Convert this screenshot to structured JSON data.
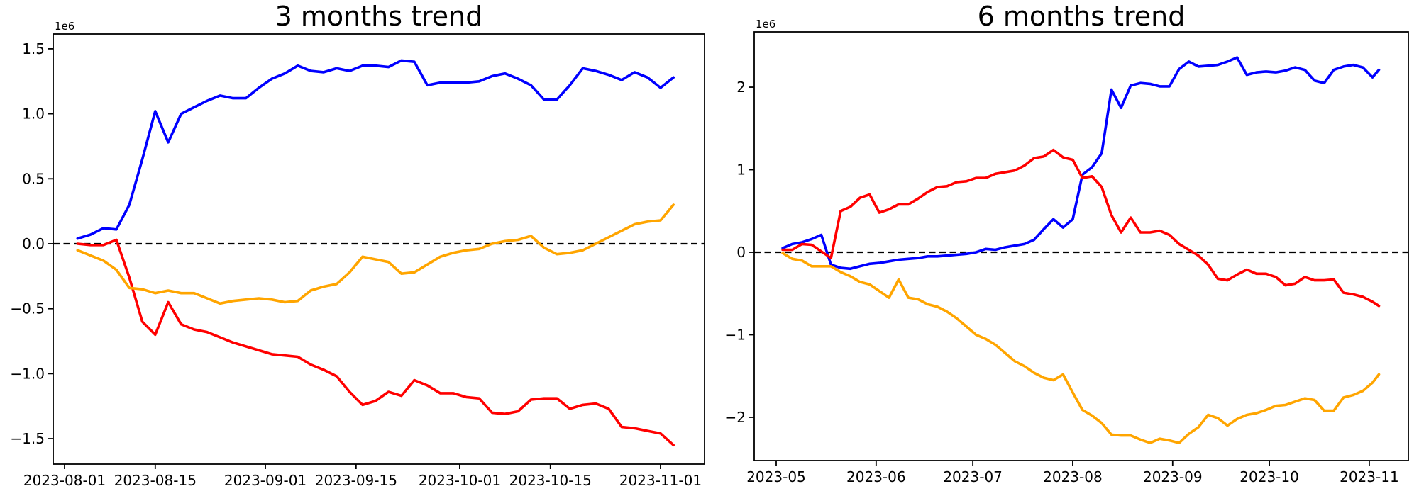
{
  "figure": {
    "background": "#ffffff",
    "axis_color": "#000000",
    "zero_line_style": "dashed"
  },
  "chart_data": [
    {
      "type": "line",
      "title": "3 months trend",
      "offset_label": "1e6",
      "xlabel": "",
      "ylabel": "",
      "grid": false,
      "legend": "none",
      "zero_line": true,
      "ylim": [
        -1.696,
        1.614
      ],
      "y_ticks": [
        {
          "value": 1.5,
          "label": "1.5"
        },
        {
          "value": 1.0,
          "label": "1.0"
        },
        {
          "value": 0.5,
          "label": "0.5"
        },
        {
          "value": 0.0,
          "label": "0.0"
        },
        {
          "value": -0.5,
          "label": "−0.5"
        },
        {
          "value": -1.0,
          "label": "−1.0"
        },
        {
          "value": -1.5,
          "label": "−1.5"
        }
      ],
      "x_ticks": [
        {
          "date": "2023-08-01",
          "label": "2023-08-01"
        },
        {
          "date": "2023-08-15",
          "label": "2023-08-15"
        },
        {
          "date": "2023-09-01",
          "label": "2023-09-01"
        },
        {
          "date": "2023-09-15",
          "label": "2023-09-15"
        },
        {
          "date": "2023-10-01",
          "label": "2023-10-01"
        },
        {
          "date": "2023-10-15",
          "label": "2023-10-15"
        },
        {
          "date": "2023-11-01",
          "label": "2023-11-01"
        }
      ],
      "dates": [
        "2023-08-03",
        "2023-08-05",
        "2023-08-07",
        "2023-08-09",
        "2023-08-11",
        "2023-08-13",
        "2023-08-15",
        "2023-08-17",
        "2023-08-19",
        "2023-08-21",
        "2023-08-23",
        "2023-08-25",
        "2023-08-27",
        "2023-08-29",
        "2023-08-31",
        "2023-09-02",
        "2023-09-04",
        "2023-09-06",
        "2023-09-08",
        "2023-09-10",
        "2023-09-12",
        "2023-09-14",
        "2023-09-16",
        "2023-09-18",
        "2023-09-20",
        "2023-09-22",
        "2023-09-24",
        "2023-09-26",
        "2023-09-28",
        "2023-09-30",
        "2023-10-02",
        "2023-10-04",
        "2023-10-06",
        "2023-10-08",
        "2023-10-10",
        "2023-10-12",
        "2023-10-14",
        "2023-10-16",
        "2023-10-18",
        "2023-10-20",
        "2023-10-22",
        "2023-10-24",
        "2023-10-26",
        "2023-10-28",
        "2023-10-30",
        "2023-11-01",
        "2023-11-03"
      ],
      "series": [
        {
          "name": "blue",
          "color": "#0000ff",
          "values": [
            0.04,
            0.07,
            0.12,
            0.11,
            0.3,
            0.65,
            1.02,
            0.78,
            1.0,
            1.05,
            1.1,
            1.14,
            1.12,
            1.12,
            1.2,
            1.27,
            1.31,
            1.37,
            1.33,
            1.32,
            1.35,
            1.33,
            1.37,
            1.37,
            1.36,
            1.41,
            1.4,
            1.22,
            1.24,
            1.24,
            1.24,
            1.25,
            1.29,
            1.31,
            1.27,
            1.22,
            1.11,
            1.11,
            1.22,
            1.35,
            1.33,
            1.3,
            1.26,
            1.32,
            1.28,
            1.2,
            1.28
          ]
        },
        {
          "name": "red",
          "color": "#ff0000",
          "values": [
            0.0,
            -0.01,
            -0.01,
            0.03,
            -0.26,
            -0.6,
            -0.7,
            -0.45,
            -0.62,
            -0.66,
            -0.68,
            -0.72,
            -0.76,
            -0.79,
            -0.82,
            -0.85,
            -0.86,
            -0.87,
            -0.93,
            -0.97,
            -1.02,
            -1.14,
            -1.24,
            -1.21,
            -1.14,
            -1.17,
            -1.05,
            -1.09,
            -1.15,
            -1.15,
            -1.18,
            -1.19,
            -1.3,
            -1.31,
            -1.29,
            -1.2,
            -1.19,
            -1.19,
            -1.27,
            -1.24,
            -1.23,
            -1.27,
            -1.41,
            -1.42,
            -1.44,
            -1.46,
            -1.55
          ]
        },
        {
          "name": "orange",
          "color": "#ffa500",
          "values": [
            -0.05,
            -0.09,
            -0.13,
            -0.2,
            -0.34,
            -0.35,
            -0.38,
            -0.36,
            -0.38,
            -0.38,
            -0.42,
            -0.46,
            -0.44,
            -0.43,
            -0.42,
            -0.43,
            -0.45,
            -0.44,
            -0.36,
            -0.33,
            -0.31,
            -0.22,
            -0.1,
            -0.12,
            -0.14,
            -0.23,
            -0.22,
            -0.16,
            -0.1,
            -0.07,
            -0.05,
            -0.04,
            0.0,
            0.02,
            0.03,
            0.06,
            -0.03,
            -0.08,
            -0.07,
            -0.05,
            0.0,
            0.05,
            0.1,
            0.15,
            0.17,
            0.18,
            0.3
          ]
        }
      ]
    },
    {
      "type": "line",
      "title": "6 months trend",
      "offset_label": "1e6",
      "xlabel": "",
      "ylabel": "",
      "grid": false,
      "legend": "none",
      "zero_line": true,
      "ylim": [
        -2.524,
        2.67
      ],
      "y_ticks": [
        {
          "value": 2,
          "label": "2"
        },
        {
          "value": 1,
          "label": "1"
        },
        {
          "value": 0,
          "label": "0"
        },
        {
          "value": -1,
          "label": "−1"
        },
        {
          "value": -2,
          "label": "−2"
        }
      ],
      "x_ticks": [
        {
          "date": "2023-05-01",
          "label": "2023-05"
        },
        {
          "date": "2023-06-01",
          "label": "2023-06"
        },
        {
          "date": "2023-07-01",
          "label": "2023-07"
        },
        {
          "date": "2023-08-01",
          "label": "2023-08"
        },
        {
          "date": "2023-09-01",
          "label": "2023-09"
        },
        {
          "date": "2023-10-01",
          "label": "2023-10"
        },
        {
          "date": "2023-11-01",
          "label": "2023-11"
        }
      ],
      "dates": [
        "2023-05-03",
        "2023-05-06",
        "2023-05-09",
        "2023-05-12",
        "2023-05-15",
        "2023-05-18",
        "2023-05-21",
        "2023-05-24",
        "2023-05-27",
        "2023-05-30",
        "2023-06-02",
        "2023-06-05",
        "2023-06-08",
        "2023-06-11",
        "2023-06-14",
        "2023-06-17",
        "2023-06-20",
        "2023-06-23",
        "2023-06-26",
        "2023-06-29",
        "2023-07-02",
        "2023-07-05",
        "2023-07-08",
        "2023-07-11",
        "2023-07-14",
        "2023-07-17",
        "2023-07-20",
        "2023-07-23",
        "2023-07-26",
        "2023-07-29",
        "2023-08-01",
        "2023-08-04",
        "2023-08-07",
        "2023-08-10",
        "2023-08-13",
        "2023-08-16",
        "2023-08-19",
        "2023-08-22",
        "2023-08-25",
        "2023-08-28",
        "2023-08-31",
        "2023-09-03",
        "2023-09-06",
        "2023-09-09",
        "2023-09-12",
        "2023-09-15",
        "2023-09-18",
        "2023-09-21",
        "2023-09-24",
        "2023-09-27",
        "2023-09-30",
        "2023-10-03",
        "2023-10-06",
        "2023-10-09",
        "2023-10-12",
        "2023-10-15",
        "2023-10-18",
        "2023-10-21",
        "2023-10-24",
        "2023-10-27",
        "2023-10-30",
        "2023-11-02",
        "2023-11-04"
      ],
      "series": [
        {
          "name": "blue",
          "color": "#0000ff",
          "values": [
            0.05,
            0.1,
            0.12,
            0.16,
            0.21,
            -0.15,
            -0.19,
            -0.2,
            -0.17,
            -0.14,
            -0.13,
            -0.11,
            -0.09,
            -0.08,
            -0.07,
            -0.05,
            -0.05,
            -0.04,
            -0.03,
            -0.02,
            0.0,
            0.04,
            0.03,
            0.06,
            0.08,
            0.1,
            0.15,
            0.28,
            0.4,
            0.3,
            0.4,
            0.94,
            1.03,
            1.2,
            1.97,
            1.75,
            2.02,
            2.05,
            2.04,
            2.01,
            2.01,
            2.22,
            2.31,
            2.25,
            2.26,
            2.27,
            2.31,
            2.36,
            2.15,
            2.18,
            2.19,
            2.18,
            2.2,
            2.24,
            2.21,
            2.08,
            2.05,
            2.21,
            2.25,
            2.27,
            2.24,
            2.12,
            2.21
          ]
        },
        {
          "name": "red",
          "color": "#ff0000",
          "values": [
            0.03,
            0.03,
            0.1,
            0.09,
            0.01,
            -0.07,
            0.5,
            0.55,
            0.66,
            0.7,
            0.48,
            0.52,
            0.58,
            0.58,
            0.65,
            0.73,
            0.79,
            0.8,
            0.85,
            0.86,
            0.9,
            0.9,
            0.95,
            0.97,
            0.99,
            1.05,
            1.14,
            1.16,
            1.24,
            1.15,
            1.12,
            0.9,
            0.92,
            0.79,
            0.45,
            0.24,
            0.42,
            0.24,
            0.24,
            0.26,
            0.21,
            0.1,
            0.03,
            -0.04,
            -0.15,
            -0.32,
            -0.34,
            -0.27,
            -0.21,
            -0.26,
            -0.26,
            -0.3,
            -0.4,
            -0.38,
            -0.3,
            -0.34,
            -0.34,
            -0.33,
            -0.49,
            -0.51,
            -0.54,
            -0.6,
            -0.65
          ]
        },
        {
          "name": "orange",
          "color": "#ffa500",
          "values": [
            -0.01,
            -0.08,
            -0.1,
            -0.17,
            -0.17,
            -0.17,
            -0.24,
            -0.29,
            -0.36,
            -0.39,
            -0.47,
            -0.55,
            -0.33,
            -0.55,
            -0.57,
            -0.63,
            -0.66,
            -0.72,
            -0.8,
            -0.9,
            -1.0,
            -1.05,
            -1.12,
            -1.22,
            -1.32,
            -1.38,
            -1.46,
            -1.52,
            -1.55,
            -1.48,
            -1.7,
            -1.91,
            -1.98,
            -2.07,
            -2.21,
            -2.22,
            -2.22,
            -2.27,
            -2.31,
            -2.26,
            -2.28,
            -2.31,
            -2.2,
            -2.12,
            -1.97,
            -2.01,
            -2.1,
            -2.02,
            -1.97,
            -1.95,
            -1.91,
            -1.86,
            -1.85,
            -1.81,
            -1.77,
            -1.79,
            -1.92,
            -1.92,
            -1.76,
            -1.73,
            -1.68,
            -1.58,
            -1.48
          ]
        }
      ]
    }
  ]
}
